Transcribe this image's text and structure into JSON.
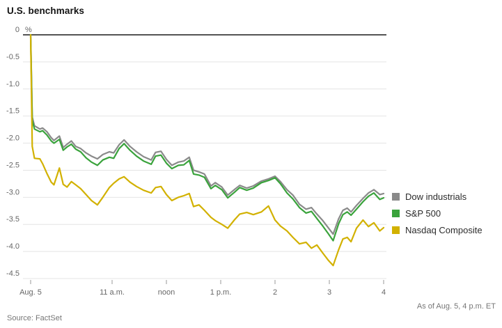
{
  "title": "U.S. benchmarks",
  "source": "Source: FactSet",
  "as_of": "As of Aug. 5, 4 p.m. ET",
  "colors": {
    "dow": "#8a8a8a",
    "sp500": "#3aa33c",
    "nasdaq": "#d2b100",
    "zero_line": "#1c1c1c",
    "gridline": "#e4e4e4",
    "axis_text": "#666666",
    "tick": "#999999"
  },
  "chart_data": {
    "type": "line",
    "title": "U.S. benchmarks",
    "y_unit": "%",
    "x_unit": "time (ET), Aug. 5, 9:30 a.m. to 4 p.m.",
    "ylim": [
      -4.5,
      0
    ],
    "grid": true,
    "legend_position": "right",
    "y_ticks": [
      0,
      -0.5,
      -1.0,
      -1.5,
      -2.0,
      -2.5,
      -3.0,
      -3.5,
      -4.0,
      -4.5
    ],
    "y_tick_labels": [
      "0",
      "-0.5",
      "-1.0",
      "-1.5",
      "-2.0",
      "-2.5",
      "-3.0",
      "-3.5",
      "-4.0",
      "-4.5"
    ],
    "x_ticks": [
      {
        "t": 9.5,
        "label": "Aug. 5"
      },
      {
        "t": 11.0,
        "label": "11 a.m."
      },
      {
        "t": 12.0,
        "label": "noon"
      },
      {
        "t": 13.0,
        "label": "1 p.m."
      },
      {
        "t": 14.0,
        "label": "2"
      },
      {
        "t": 15.0,
        "label": "3"
      },
      {
        "t": 16.0,
        "label": "4"
      }
    ],
    "x": [
      9.5,
      9.53,
      9.57,
      9.67,
      9.72,
      9.8,
      9.88,
      9.93,
      10.03,
      10.1,
      10.17,
      10.25,
      10.33,
      10.42,
      10.52,
      10.62,
      10.73,
      10.83,
      10.95,
      11.03,
      11.13,
      11.22,
      11.33,
      11.45,
      11.58,
      11.72,
      11.8,
      11.9,
      12.0,
      12.1,
      12.22,
      12.32,
      12.42,
      12.5,
      12.6,
      12.7,
      12.82,
      12.9,
      13.02,
      13.13,
      13.25,
      13.35,
      13.48,
      13.6,
      13.75,
      13.88,
      14.0,
      14.1,
      14.22,
      14.33,
      14.45,
      14.57,
      14.67,
      14.77,
      14.88,
      14.98,
      15.07,
      15.17,
      15.25,
      15.33,
      15.4,
      15.5,
      15.62,
      15.72,
      15.82,
      15.93,
      16.0
    ],
    "series": [
      {
        "name": "Dow industrials",
        "color": "#8a8a8a",
        "values": [
          0.0,
          -1.52,
          -1.68,
          -1.74,
          -1.72,
          -1.79,
          -1.9,
          -1.95,
          -1.87,
          -2.08,
          -2.02,
          -1.96,
          -2.06,
          -2.1,
          -2.18,
          -2.24,
          -2.29,
          -2.21,
          -2.16,
          -2.18,
          -2.03,
          -1.94,
          -2.06,
          -2.16,
          -2.25,
          -2.31,
          -2.17,
          -2.15,
          -2.3,
          -2.41,
          -2.35,
          -2.33,
          -2.26,
          -2.5,
          -2.53,
          -2.57,
          -2.79,
          -2.73,
          -2.81,
          -2.96,
          -2.86,
          -2.78,
          -2.83,
          -2.79,
          -2.7,
          -2.66,
          -2.61,
          -2.71,
          -2.86,
          -2.96,
          -3.13,
          -3.22,
          -3.19,
          -3.31,
          -3.43,
          -3.56,
          -3.68,
          -3.4,
          -3.24,
          -3.2,
          -3.27,
          -3.15,
          -3.02,
          -2.92,
          -2.86,
          -2.95,
          -2.93
        ]
      },
      {
        "name": "S&P 500",
        "color": "#3aa33c",
        "values": [
          0.0,
          -1.58,
          -1.74,
          -1.79,
          -1.77,
          -1.85,
          -1.96,
          -2.0,
          -1.93,
          -2.13,
          -2.07,
          -2.02,
          -2.11,
          -2.16,
          -2.27,
          -2.35,
          -2.41,
          -2.31,
          -2.26,
          -2.28,
          -2.1,
          -2.01,
          -2.13,
          -2.24,
          -2.33,
          -2.39,
          -2.24,
          -2.22,
          -2.37,
          -2.47,
          -2.41,
          -2.4,
          -2.32,
          -2.57,
          -2.59,
          -2.63,
          -2.84,
          -2.78,
          -2.86,
          -3.01,
          -2.91,
          -2.82,
          -2.87,
          -2.83,
          -2.73,
          -2.69,
          -2.64,
          -2.75,
          -2.92,
          -3.03,
          -3.19,
          -3.29,
          -3.26,
          -3.39,
          -3.53,
          -3.67,
          -3.8,
          -3.49,
          -3.32,
          -3.27,
          -3.33,
          -3.22,
          -3.08,
          -2.98,
          -2.92,
          -3.04,
          -3.01
        ]
      },
      {
        "name": "Nasdaq Composite",
        "color": "#d2b100",
        "values": [
          0.0,
          -2.06,
          -2.28,
          -2.29,
          -2.38,
          -2.56,
          -2.72,
          -2.77,
          -2.46,
          -2.76,
          -2.81,
          -2.71,
          -2.77,
          -2.84,
          -2.95,
          -3.06,
          -3.14,
          -3.0,
          -2.82,
          -2.74,
          -2.66,
          -2.62,
          -2.72,
          -2.8,
          -2.87,
          -2.92,
          -2.82,
          -2.8,
          -2.95,
          -3.06,
          -3.0,
          -2.97,
          -2.93,
          -3.17,
          -3.14,
          -3.24,
          -3.37,
          -3.43,
          -3.5,
          -3.57,
          -3.42,
          -3.31,
          -3.28,
          -3.32,
          -3.27,
          -3.16,
          -3.42,
          -3.53,
          -3.62,
          -3.74,
          -3.86,
          -3.83,
          -3.94,
          -3.88,
          -4.03,
          -4.16,
          -4.26,
          -3.97,
          -3.77,
          -3.74,
          -3.82,
          -3.57,
          -3.42,
          -3.54,
          -3.47,
          -3.62,
          -3.56
        ]
      }
    ]
  }
}
